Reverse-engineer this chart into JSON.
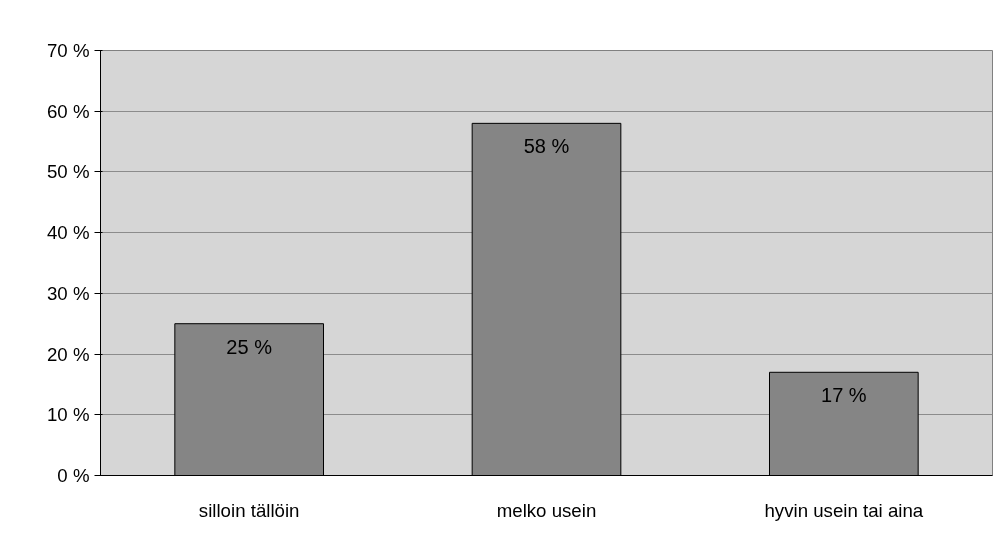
{
  "chart_data": {
    "type": "bar",
    "categories": [
      "silloin tällöin",
      "melko usein",
      "hyvin usein tai aina"
    ],
    "values": [
      25,
      58,
      17
    ],
    "value_labels": [
      "25 %",
      "58 %",
      "17 %"
    ],
    "color": "#858585",
    "ylim": [
      0,
      70
    ],
    "yticks": [
      {
        "value": 0,
        "label": "0 %"
      },
      {
        "value": 10,
        "label": "10 %"
      },
      {
        "value": 20,
        "label": "20 %"
      },
      {
        "value": 30,
        "label": "30 %"
      },
      {
        "value": 40,
        "label": "40 %"
      },
      {
        "value": 50,
        "label": "50 %"
      },
      {
        "value": 60,
        "label": "60 %"
      },
      {
        "value": 70,
        "label": "70 %"
      }
    ],
    "grid": "y"
  }
}
